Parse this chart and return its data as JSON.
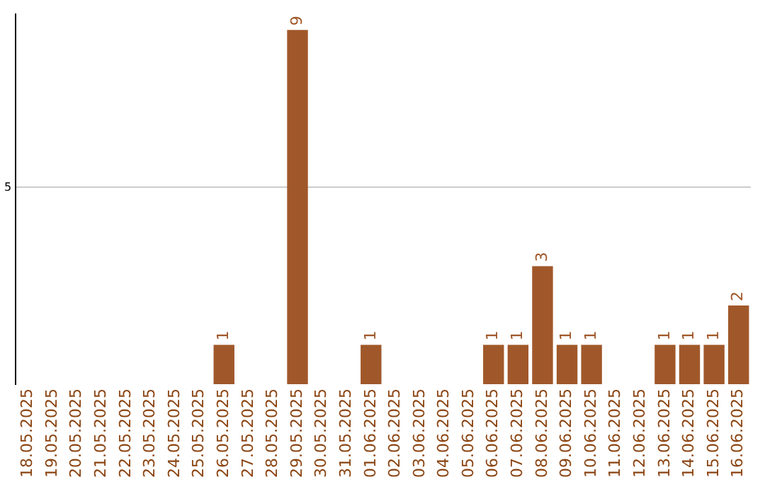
{
  "chart_data": {
    "type": "bar",
    "categories": [
      "18.05.2025",
      "19.05.2025",
      "20.05.2025",
      "21.05.2025",
      "22.05.2025",
      "23.05.2025",
      "24.05.2025",
      "25.05.2025",
      "26.05.2025",
      "27.05.2025",
      "28.05.2025",
      "29.05.2025",
      "30.05.2025",
      "31.05.2025",
      "01.06.2025",
      "02.06.2025",
      "03.06.2025",
      "04.06.2025",
      "05.06.2025",
      "06.06.2025",
      "07.06.2025",
      "08.06.2025",
      "09.06.2025",
      "10.06.2025",
      "11.06.2025",
      "12.06.2025",
      "13.06.2025",
      "14.06.2025",
      "15.06.2025",
      "16.06.2025"
    ],
    "values": [
      0,
      0,
      0,
      0,
      0,
      0,
      0,
      0,
      1,
      0,
      0,
      9,
      0,
      0,
      1,
      0,
      0,
      0,
      0,
      1,
      1,
      3,
      1,
      1,
      0,
      0,
      1,
      1,
      1,
      2
    ],
    "value_labels": [
      null,
      null,
      null,
      null,
      null,
      null,
      null,
      null,
      "1",
      null,
      null,
      "9",
      null,
      null,
      "1",
      null,
      null,
      null,
      null,
      "1",
      "1",
      "3",
      "1",
      "1",
      null,
      null,
      "1",
      "1",
      "1",
      "2"
    ],
    "color": "#a0582a",
    "ylim": [
      0,
      9.4
    ],
    "yticks": [
      5
    ],
    "grid": "y",
    "legend": false
  }
}
